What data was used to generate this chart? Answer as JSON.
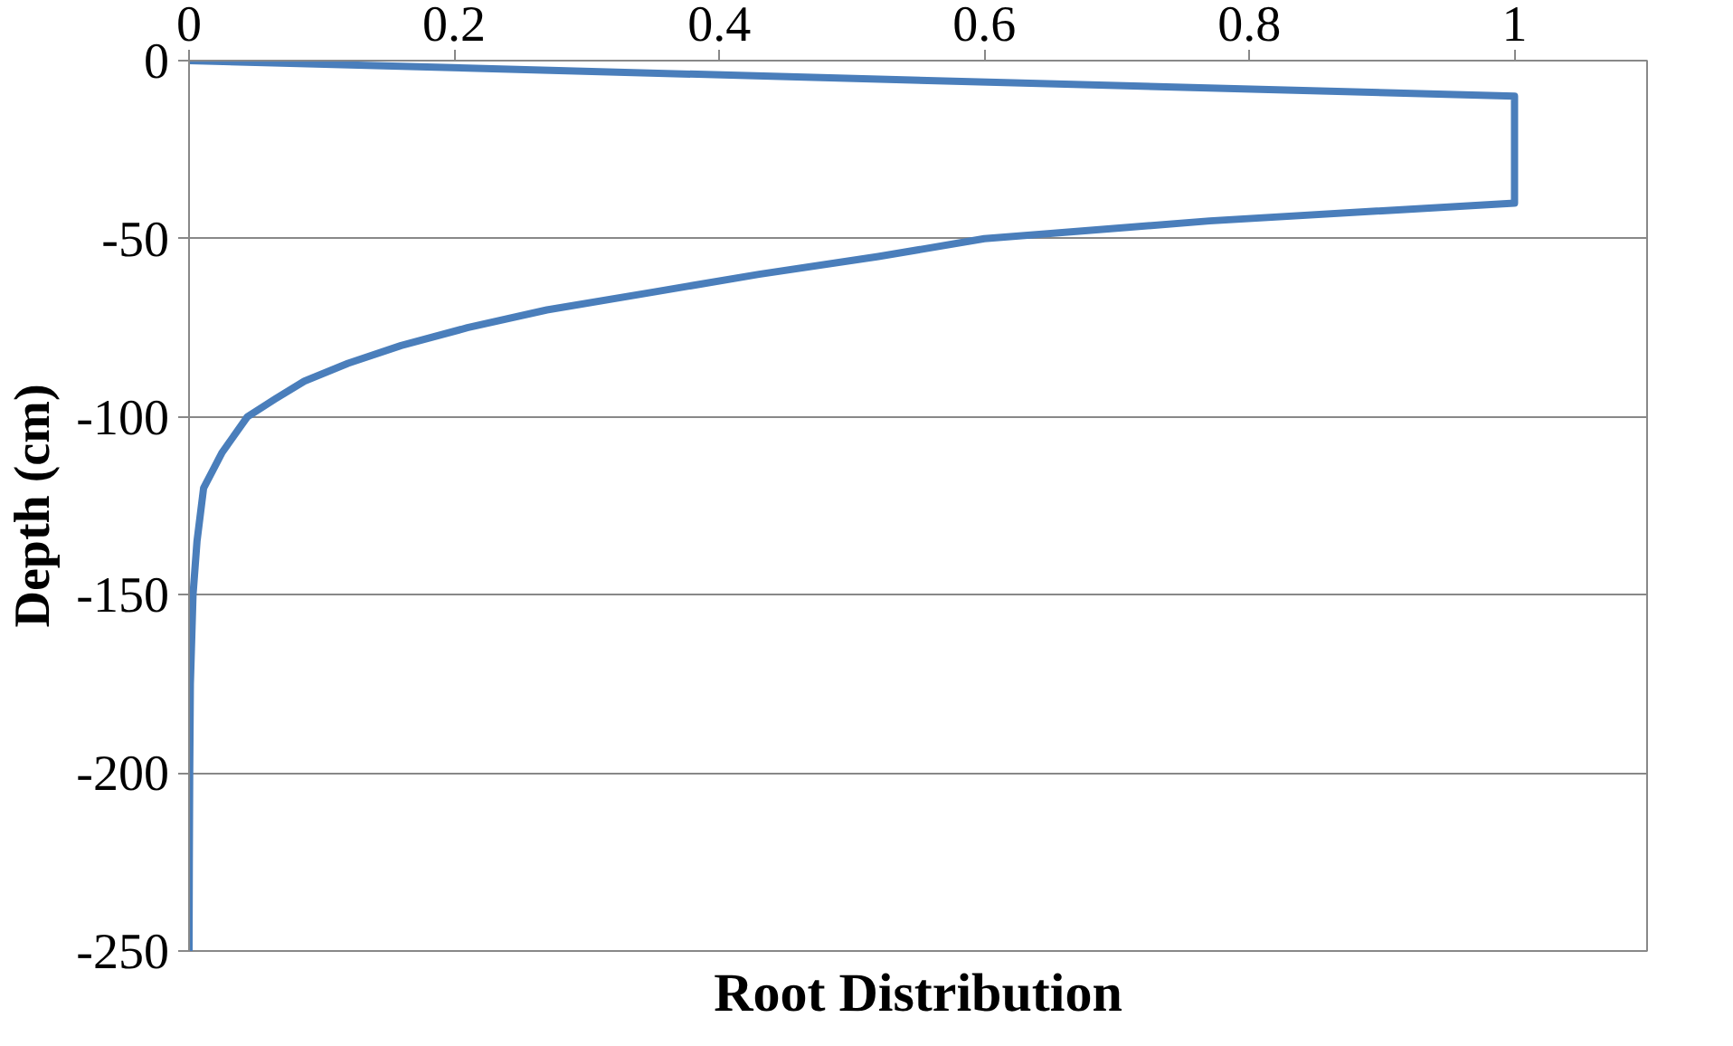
{
  "chart_data": {
    "type": "line",
    "xlabel": "Root Distribution",
    "ylabel": "Depth (cm)",
    "series": [
      {
        "color": "#4a7ebb",
        "x": [
          0,
          1,
          1,
          0.77,
          0.6,
          0.52,
          0.43,
          0.35,
          0.27,
          0.21,
          0.16,
          0.12,
          0.087,
          0.065,
          0.044,
          0.025,
          0.011,
          0.006,
          0.003,
          0.001,
          0.0005,
          0.0002,
          0
        ],
        "values": [
          0,
          -10,
          -40,
          -45,
          -50,
          -55,
          -60,
          -65,
          -70,
          -75,
          -80,
          -85,
          -90,
          -95,
          -100,
          -110,
          -120,
          -135,
          -150,
          -175,
          -200,
          -225,
          -250
        ]
      }
    ],
    "xlim": [
      0,
      1.1
    ],
    "xticks": [
      0,
      0.2,
      0.4,
      0.6,
      0.8,
      1
    ],
    "ylim": [
      -250,
      0
    ],
    "yticks": [
      0,
      -50,
      -100,
      -150,
      -200,
      -250
    ],
    "grid": "y",
    "marker": "none",
    "line_style": "solid"
  }
}
